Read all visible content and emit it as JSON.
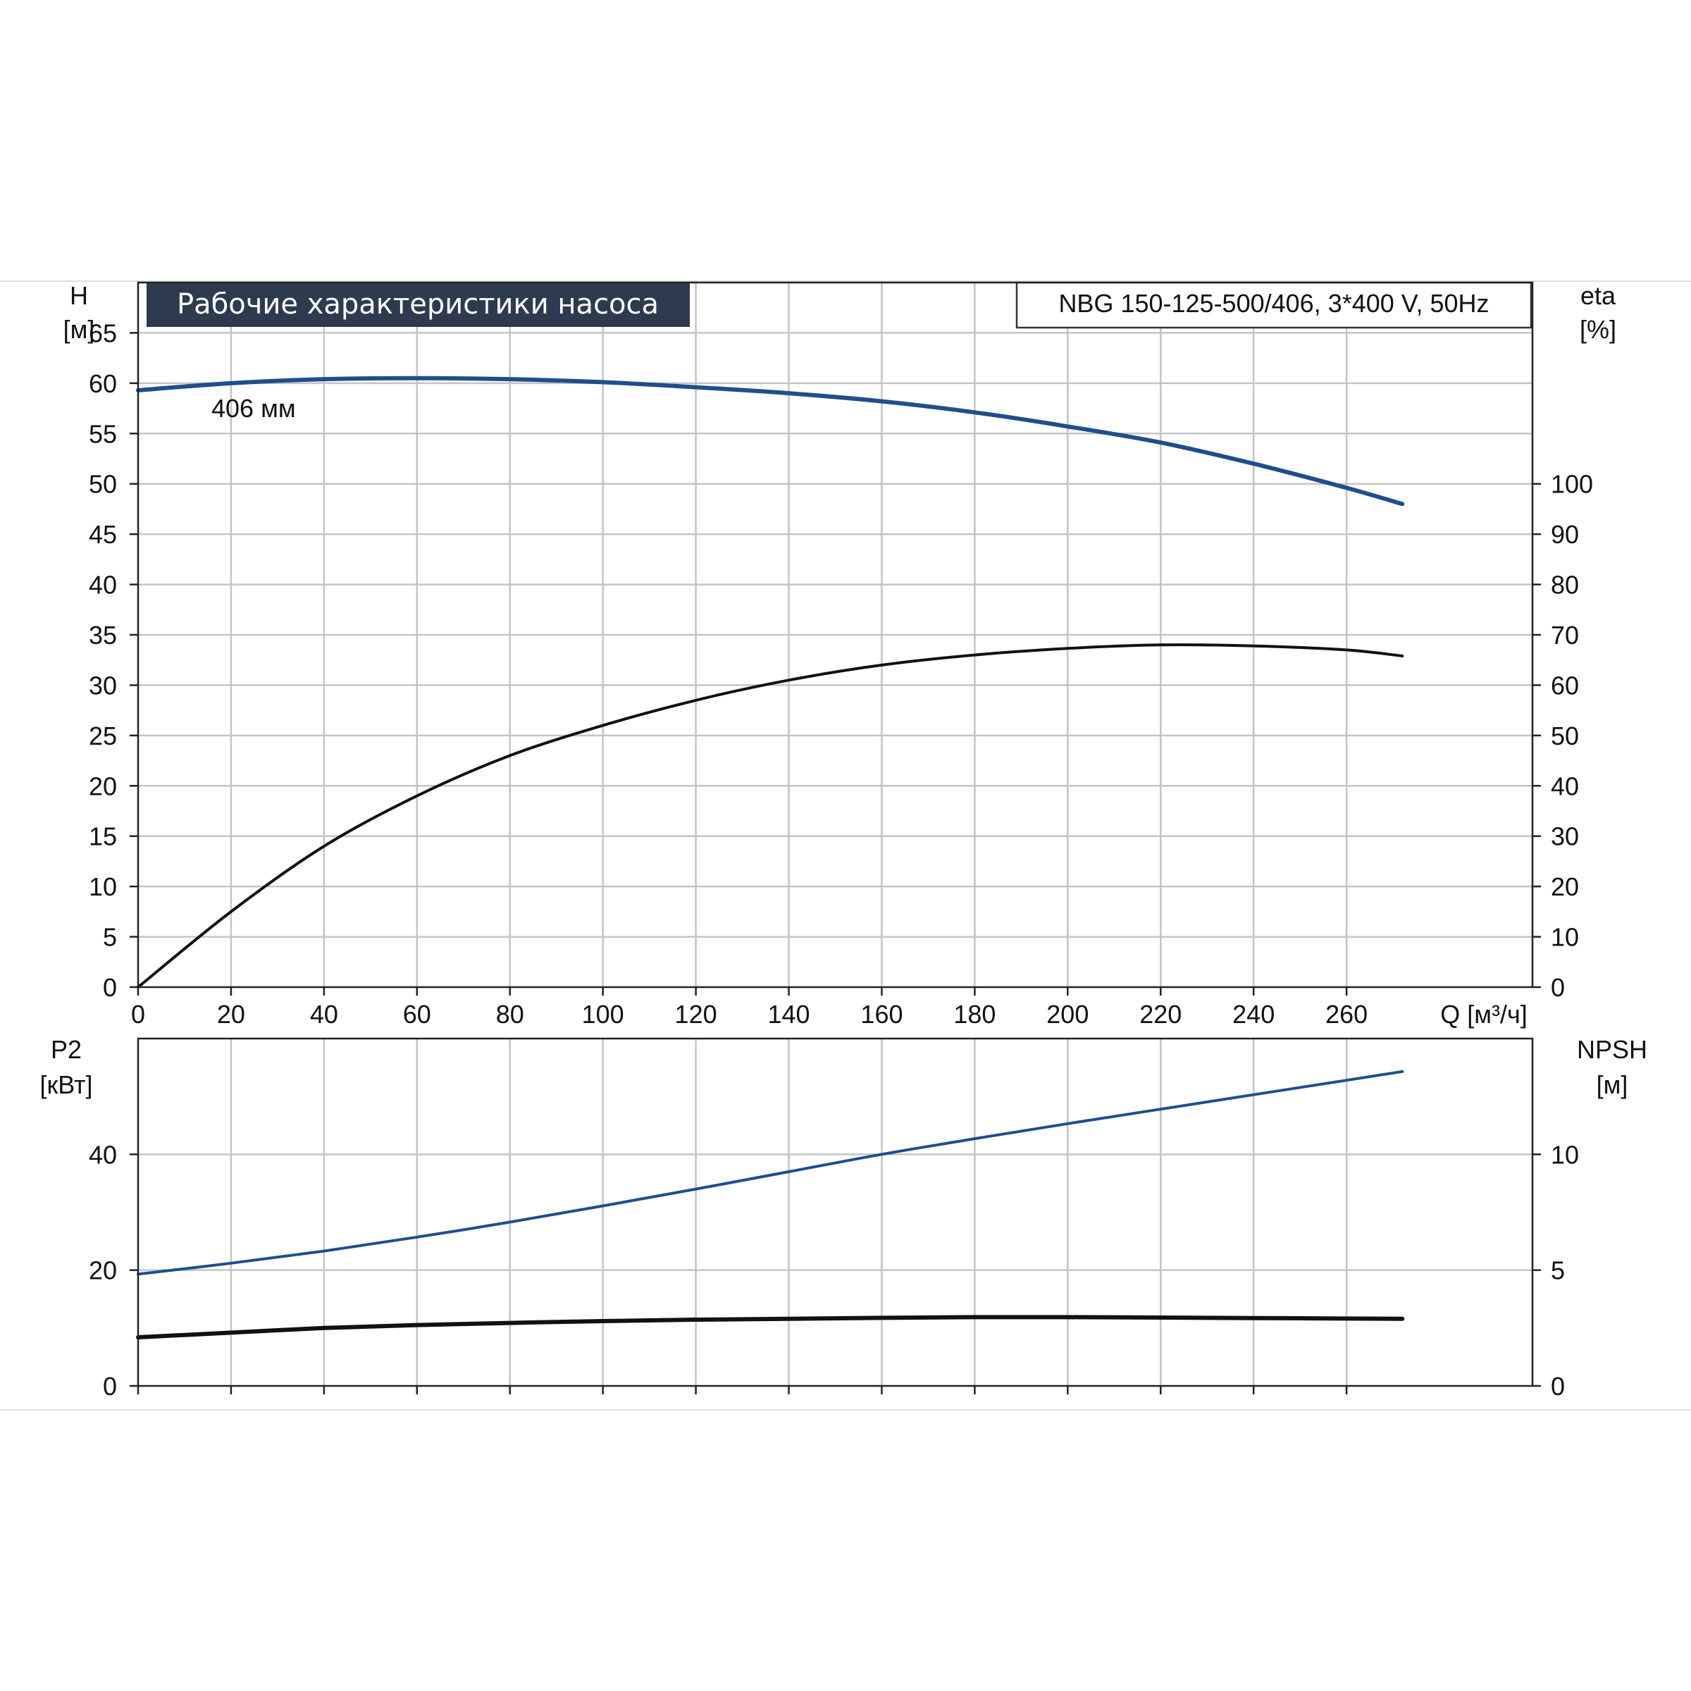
{
  "title": "Рабочие характеристики насоса",
  "model": "NBG 150-125-500/406, 3*400 V, 50Hz",
  "colors": {
    "blue": "#1f4e8c",
    "black": "#111111",
    "title_bg": "#2d3a4f",
    "grid": "#c4c4c4"
  },
  "chart_data": [
    {
      "id": "top",
      "type": "line",
      "x_axis": {
        "label": "Q [м³/ч]",
        "range": [
          0,
          300
        ],
        "ticks": [
          0,
          20,
          40,
          60,
          80,
          100,
          120,
          140,
          160,
          180,
          200,
          220,
          240,
          260
        ]
      },
      "y_left": {
        "label": "H",
        "unit": "[м]",
        "range": [
          0,
          70
        ],
        "ticks": [
          0,
          5,
          10,
          15,
          20,
          25,
          30,
          35,
          40,
          45,
          50,
          55,
          60,
          65
        ]
      },
      "y_right": {
        "label": "eta",
        "unit": "[%]",
        "range": [
          0,
          140
        ],
        "ticks": [
          0,
          10,
          20,
          30,
          40,
          50,
          60,
          70,
          80,
          90,
          100
        ]
      },
      "grid": true,
      "curve_label": "406 мм",
      "series": [
        {
          "axis": "left",
          "color": "blue",
          "x": [
            0,
            20,
            40,
            60,
            80,
            100,
            120,
            140,
            160,
            180,
            200,
            220,
            240,
            260,
            272
          ],
          "y": [
            59.3,
            60.0,
            60.4,
            60.5,
            60.4,
            60.1,
            59.6,
            59.0,
            58.2,
            57.1,
            55.7,
            54.1,
            52.0,
            49.6,
            48.0
          ]
        },
        {
          "axis": "right",
          "color": "black",
          "x": [
            0,
            20,
            40,
            60,
            80,
            100,
            120,
            140,
            160,
            180,
            200,
            220,
            240,
            260,
            272
          ],
          "y": [
            0,
            15,
            28,
            38,
            46,
            52,
            57,
            61,
            64,
            66,
            67.3,
            68,
            67.8,
            67,
            65.8
          ]
        }
      ]
    },
    {
      "id": "bottom",
      "type": "line",
      "x_axis": {
        "range": [
          0,
          300
        ]
      },
      "y_left": {
        "label": "P2",
        "unit": "[кВт]",
        "range": [
          0,
          60
        ],
        "ticks": [
          0,
          20,
          40
        ]
      },
      "y_right": {
        "label": "NPSH",
        "unit": "[м]",
        "range": [
          0,
          15
        ],
        "ticks": [
          0,
          5,
          10
        ]
      },
      "grid": true,
      "series": [
        {
          "axis": "left",
          "color": "blue",
          "x": [
            0,
            20,
            40,
            60,
            80,
            100,
            120,
            140,
            160,
            180,
            200,
            220,
            240,
            260,
            272
          ],
          "y": [
            19.3,
            21.2,
            23.3,
            25.7,
            28.3,
            31.1,
            34.0,
            37.0,
            40.0,
            42.7,
            45.3,
            47.8,
            50.3,
            52.8,
            54.3
          ]
        },
        {
          "axis": "right",
          "color": "black",
          "x": [
            0,
            20,
            40,
            60,
            80,
            100,
            120,
            140,
            160,
            180,
            200,
            220,
            240,
            260,
            272
          ],
          "y": [
            2.1,
            2.3,
            2.5,
            2.63,
            2.72,
            2.8,
            2.86,
            2.9,
            2.94,
            2.97,
            2.97,
            2.95,
            2.93,
            2.91,
            2.9
          ]
        }
      ]
    }
  ]
}
